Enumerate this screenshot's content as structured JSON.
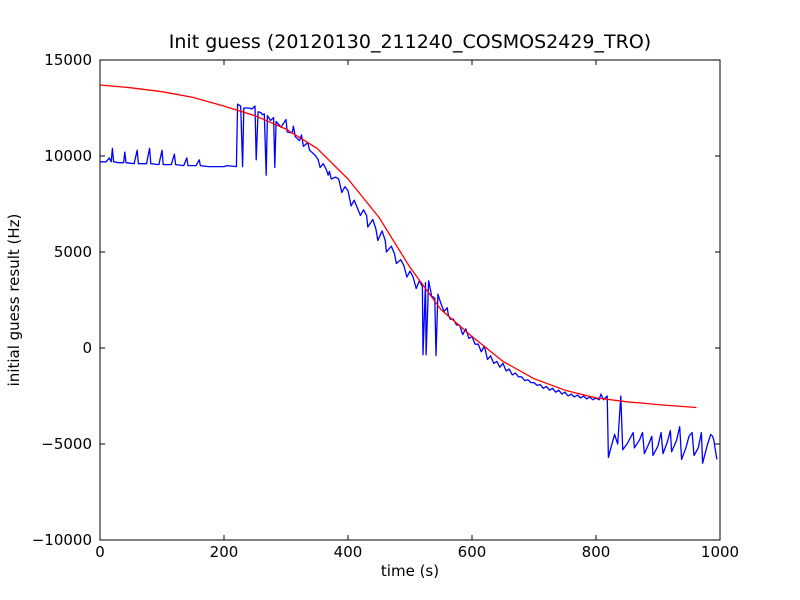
{
  "chart_data": {
    "type": "line",
    "title": "Init guess (20120130_211240_COSMOS2429_TRO)",
    "xlabel": "time (s)",
    "ylabel": "initial guess result (Hz)",
    "xlim": [
      0,
      1000
    ],
    "ylim": [
      -10000,
      15000
    ],
    "x_ticks": [
      "0",
      "200",
      "400",
      "600",
      "800",
      "1000"
    ],
    "y_ticks": [
      "15000",
      "10000",
      "5000",
      "0",
      "−5000",
      "−10000"
    ],
    "grid": false,
    "legend": "none",
    "series": [
      {
        "color": "#0000ff",
        "points": [
          [
            0,
            9700
          ],
          [
            5,
            9700
          ],
          [
            10,
            9700
          ],
          [
            15,
            9900
          ],
          [
            18,
            9700
          ],
          [
            20,
            10400
          ],
          [
            22,
            9700
          ],
          [
            30,
            9650
          ],
          [
            38,
            9650
          ],
          [
            40,
            10200
          ],
          [
            42,
            9650
          ],
          [
            55,
            9600
          ],
          [
            60,
            10300
          ],
          [
            62,
            9600
          ],
          [
            75,
            9600
          ],
          [
            80,
            10400
          ],
          [
            82,
            9600
          ],
          [
            95,
            9550
          ],
          [
            100,
            10300
          ],
          [
            102,
            9550
          ],
          [
            115,
            9550
          ],
          [
            120,
            10100
          ],
          [
            122,
            9550
          ],
          [
            135,
            9500
          ],
          [
            140,
            9900
          ],
          [
            142,
            9500
          ],
          [
            155,
            9500
          ],
          [
            160,
            9800
          ],
          [
            162,
            9500
          ],
          [
            175,
            9450
          ],
          [
            200,
            9450
          ],
          [
            205,
            9500
          ],
          [
            220,
            9450
          ],
          [
            222,
            12700
          ],
          [
            227,
            12600
          ],
          [
            230,
            9450
          ],
          [
            232,
            12500
          ],
          [
            240,
            12500
          ],
          [
            245,
            12450
          ],
          [
            250,
            12600
          ],
          [
            252,
            9800
          ],
          [
            255,
            12300
          ],
          [
            260,
            12250
          ],
          [
            262,
            12150
          ],
          [
            265,
            12200
          ],
          [
            268,
            9000
          ],
          [
            270,
            12100
          ],
          [
            275,
            11850
          ],
          [
            280,
            12000
          ],
          [
            282,
            9400
          ],
          [
            284,
            11800
          ],
          [
            292,
            11500
          ],
          [
            300,
            11900
          ],
          [
            302,
            11250
          ],
          [
            310,
            11200
          ],
          [
            312,
            11550
          ],
          [
            315,
            11000
          ],
          [
            322,
            10800
          ],
          [
            325,
            11100
          ],
          [
            328,
            10500
          ],
          [
            335,
            10700
          ],
          [
            338,
            10300
          ],
          [
            345,
            10100
          ],
          [
            348,
            10000
          ],
          [
            352,
            9800
          ],
          [
            355,
            9400
          ],
          [
            360,
            9600
          ],
          [
            365,
            9300
          ],
          [
            368,
            9000
          ],
          [
            370,
            9200
          ],
          [
            373,
            8800
          ],
          [
            380,
            8900
          ],
          [
            385,
            8800
          ],
          [
            390,
            8100
          ],
          [
            395,
            8400
          ],
          [
            400,
            8200
          ],
          [
            405,
            7400
          ],
          [
            410,
            7700
          ],
          [
            415,
            7300
          ],
          [
            420,
            6900
          ],
          [
            425,
            7200
          ],
          [
            430,
            6900
          ],
          [
            432,
            6300
          ],
          [
            440,
            6700
          ],
          [
            445,
            6200
          ],
          [
            448,
            5600
          ],
          [
            455,
            6100
          ],
          [
            460,
            5600
          ],
          [
            462,
            5000
          ],
          [
            470,
            5300
          ],
          [
            475,
            4900
          ],
          [
            478,
            4400
          ],
          [
            485,
            4600
          ],
          [
            490,
            4300
          ],
          [
            495,
            3700
          ],
          [
            500,
            4000
          ],
          [
            505,
            3700
          ],
          [
            510,
            3100
          ],
          [
            515,
            3500
          ],
          [
            520,
            3200
          ],
          [
            521,
            -350
          ],
          [
            525,
            3400
          ],
          [
            526,
            -350
          ],
          [
            530,
            3500
          ],
          [
            535,
            2700
          ],
          [
            540,
            2600
          ],
          [
            542,
            -400
          ],
          [
            545,
            2800
          ],
          [
            550,
            2300
          ],
          [
            555,
            1900
          ],
          [
            560,
            2100
          ],
          [
            562,
            1700
          ],
          [
            565,
            1500
          ],
          [
            570,
            1500
          ],
          [
            575,
            1200
          ],
          [
            580,
            1200
          ],
          [
            585,
            700
          ],
          [
            590,
            1000
          ],
          [
            595,
            500
          ],
          [
            600,
            600
          ],
          [
            605,
            200
          ],
          [
            610,
            200
          ],
          [
            615,
            -200
          ],
          [
            620,
            100
          ],
          [
            625,
            -600
          ],
          [
            630,
            -400
          ],
          [
            635,
            -800
          ],
          [
            640,
            -700
          ],
          [
            645,
            -1000
          ],
          [
            650,
            -800
          ],
          [
            655,
            -1200
          ],
          [
            660,
            -1100
          ],
          [
            665,
            -1400
          ],
          [
            670,
            -1300
          ],
          [
            675,
            -1500
          ],
          [
            680,
            -1500
          ],
          [
            685,
            -1700
          ],
          [
            690,
            -1650
          ],
          [
            695,
            -1800
          ],
          [
            700,
            -1800
          ],
          [
            705,
            -1950
          ],
          [
            710,
            -1900
          ],
          [
            715,
            -2100
          ],
          [
            720,
            -2000
          ],
          [
            725,
            -2200
          ],
          [
            730,
            -2100
          ],
          [
            735,
            -2300
          ],
          [
            740,
            -2200
          ],
          [
            745,
            -2400
          ],
          [
            750,
            -2300
          ],
          [
            755,
            -2500
          ],
          [
            760,
            -2400
          ],
          [
            765,
            -2550
          ],
          [
            770,
            -2450
          ],
          [
            775,
            -2600
          ],
          [
            780,
            -2500
          ],
          [
            785,
            -2650
          ],
          [
            790,
            -2550
          ],
          [
            795,
            -2700
          ],
          [
            800,
            -2600
          ],
          [
            805,
            -2700
          ],
          [
            808,
            -2400
          ],
          [
            812,
            -2700
          ],
          [
            818,
            -2500
          ],
          [
            820,
            -5700
          ],
          [
            824,
            -5200
          ],
          [
            830,
            -4500
          ],
          [
            835,
            -5000
          ],
          [
            840,
            -2500
          ],
          [
            843,
            -5300
          ],
          [
            850,
            -5000
          ],
          [
            855,
            -4700
          ],
          [
            860,
            -4400
          ],
          [
            862,
            -5200
          ],
          [
            870,
            -4800
          ],
          [
            875,
            -4400
          ],
          [
            878,
            -5500
          ],
          [
            885,
            -5000
          ],
          [
            890,
            -4600
          ],
          [
            892,
            -5600
          ],
          [
            900,
            -5100
          ],
          [
            905,
            -4400
          ],
          [
            908,
            -5500
          ],
          [
            915,
            -4900
          ],
          [
            920,
            -4300
          ],
          [
            922,
            -5400
          ],
          [
            930,
            -4800
          ],
          [
            935,
            -4100
          ],
          [
            938,
            -5800
          ],
          [
            945,
            -5200
          ],
          [
            950,
            -4600
          ],
          [
            955,
            -4400
          ],
          [
            958,
            -5600
          ],
          [
            965,
            -5200
          ],
          [
            970,
            -4400
          ],
          [
            972,
            -6000
          ],
          [
            980,
            -5000
          ],
          [
            985,
            -4500
          ],
          [
            988,
            -4600
          ],
          [
            990,
            -4800
          ],
          [
            992,
            -5200
          ],
          [
            995,
            -5800
          ]
        ]
      },
      {
        "color": "#ff0000",
        "points": [
          [
            0,
            13700
          ],
          [
            50,
            13550
          ],
          [
            100,
            13350
          ],
          [
            150,
            13050
          ],
          [
            200,
            12600
          ],
          [
            250,
            12100
          ],
          [
            300,
            11400
          ],
          [
            350,
            10400
          ],
          [
            400,
            8800
          ],
          [
            450,
            6800
          ],
          [
            500,
            4200
          ],
          [
            550,
            2000
          ],
          [
            600,
            600
          ],
          [
            650,
            -700
          ],
          [
            700,
            -1600
          ],
          [
            750,
            -2200
          ],
          [
            800,
            -2600
          ],
          [
            850,
            -2800
          ],
          [
            900,
            -2950
          ],
          [
            962,
            -3100
          ]
        ]
      }
    ]
  }
}
